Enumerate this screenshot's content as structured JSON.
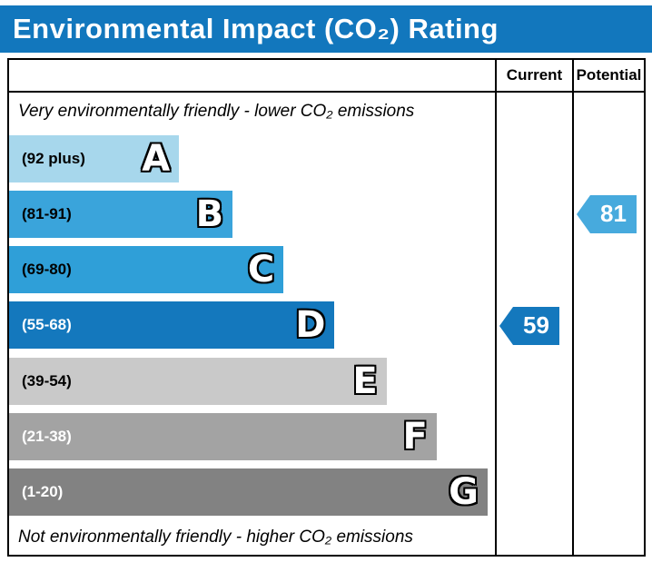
{
  "title": "Environmental Impact (CO₂) Rating",
  "colors": {
    "title_bar": "#1277bd",
    "border": "#000000"
  },
  "columns": {
    "current": "Current",
    "potential": "Potential"
  },
  "notes": {
    "top": "Very environmentally friendly - lower CO₂ emissions",
    "bottom": "Not environmentally friendly - higher CO₂ emissions"
  },
  "chart_data": {
    "type": "bar",
    "title": "Environmental Impact (CO₂) Rating",
    "bands": [
      {
        "letter": "A",
        "range": "(92 plus)",
        "color": "#a7d7ec",
        "text_color": "#000000",
        "width_pct": 35
      },
      {
        "letter": "B",
        "range": "(81-91)",
        "color": "#3aa4db",
        "text_color": "#000000",
        "width_pct": 46
      },
      {
        "letter": "C",
        "range": "(69-80)",
        "color": "#2f9fd8",
        "text_color": "#000000",
        "width_pct": 56.5
      },
      {
        "letter": "D",
        "range": "(55-68)",
        "color": "#1478bd",
        "text_color": "#ffffff",
        "width_pct": 67
      },
      {
        "letter": "E",
        "range": "(39-54)",
        "color": "#c9c9c9",
        "text_color": "#000000",
        "width_pct": 77.7
      },
      {
        "letter": "F",
        "range": "(21-38)",
        "color": "#a3a3a3",
        "text_color": "#ffffff",
        "width_pct": 88
      },
      {
        "letter": "G",
        "range": "(1-20)",
        "color": "#828282",
        "text_color": "#ffffff",
        "width_pct": 98.5
      }
    ],
    "current": {
      "label": "Current",
      "value": 59,
      "band_index": 3,
      "color": "#1478bd"
    },
    "potential": {
      "label": "Potential",
      "value": 81,
      "band_index": 1,
      "color": "#47aadd"
    }
  }
}
